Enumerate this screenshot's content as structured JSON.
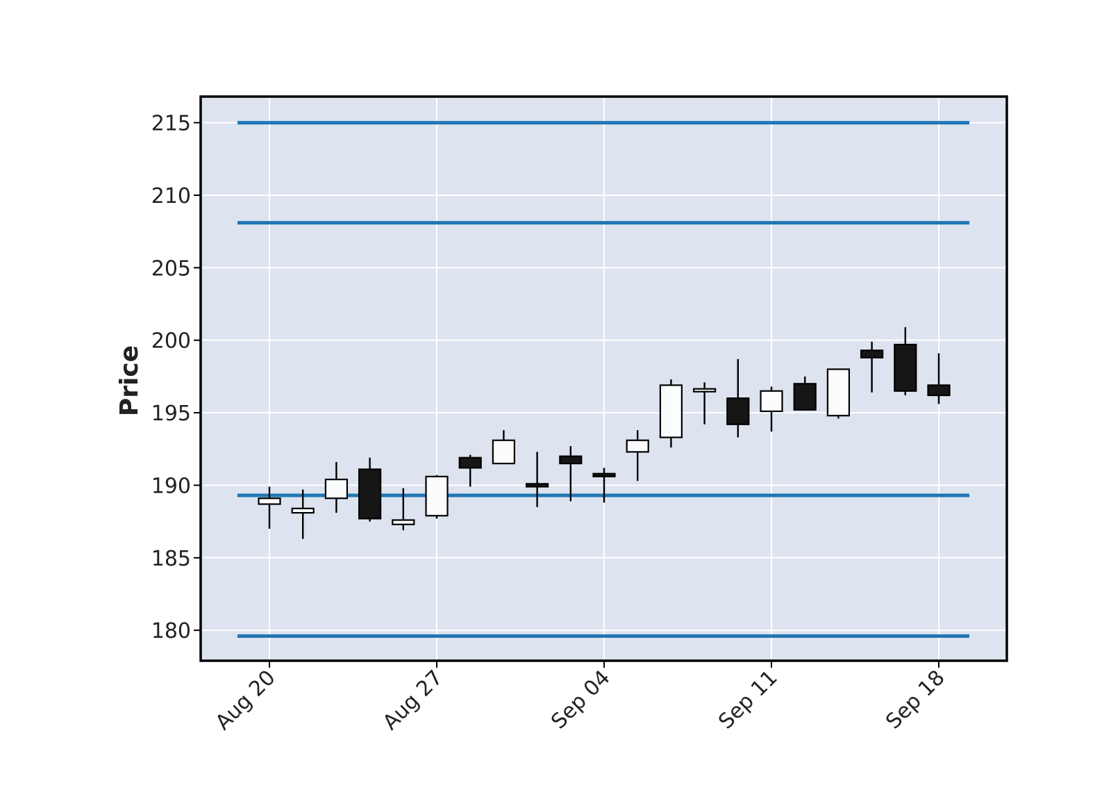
{
  "chart_data": {
    "type": "candlestick",
    "title": "",
    "xlabel": "",
    "ylabel": "Price",
    "ylim": [
      177.9,
      216.8
    ],
    "grid": true,
    "y_ticks": [
      180,
      185,
      190,
      195,
      200,
      205,
      210,
      215
    ],
    "x_ticks": [
      {
        "date": "2023-08-20",
        "label": "Aug 20"
      },
      {
        "date": "2023-08-27",
        "label": "Aug 27"
      },
      {
        "date": "2023-09-04",
        "label": "Sep 04"
      },
      {
        "date": "2023-09-11",
        "label": "Sep 11"
      },
      {
        "date": "2023-09-18",
        "label": "Sep 18"
      }
    ],
    "candles": [
      {
        "date": "2023-08-20",
        "open": 188.7,
        "high": 189.9,
        "low": 187.0,
        "close": 189.1
      },
      {
        "date": "2023-08-21",
        "open": 188.1,
        "high": 189.7,
        "low": 186.3,
        "close": 188.4
      },
      {
        "date": "2023-08-22",
        "open": 189.1,
        "high": 191.6,
        "low": 188.1,
        "close": 190.4
      },
      {
        "date": "2023-08-23",
        "open": 191.1,
        "high": 191.9,
        "low": 187.5,
        "close": 187.7
      },
      {
        "date": "2023-08-24",
        "open": 187.3,
        "high": 189.8,
        "low": 186.9,
        "close": 187.6
      },
      {
        "date": "2023-08-27",
        "open": 187.9,
        "high": 190.7,
        "low": 187.7,
        "close": 190.6
      },
      {
        "date": "2023-08-28",
        "open": 191.9,
        "high": 192.1,
        "low": 189.9,
        "close": 191.2
      },
      {
        "date": "2023-08-29",
        "open": 191.5,
        "high": 193.8,
        "low": 191.5,
        "close": 193.1
      },
      {
        "date": "2023-08-30",
        "open": 190.1,
        "high": 192.3,
        "low": 188.5,
        "close": 189.9
      },
      {
        "date": "2023-08-31",
        "open": 192.0,
        "high": 192.7,
        "low": 188.9,
        "close": 191.5
      },
      {
        "date": "2023-09-04",
        "open": 190.8,
        "high": 191.2,
        "low": 188.8,
        "close": 190.6
      },
      {
        "date": "2023-09-05",
        "open": 192.3,
        "high": 193.8,
        "low": 190.3,
        "close": 193.1
      },
      {
        "date": "2023-09-06",
        "open": 193.3,
        "high": 197.3,
        "low": 192.6,
        "close": 196.9
      },
      {
        "date": "2023-09-07",
        "open": 196.5,
        "high": 197.1,
        "low": 194.2,
        "close": 196.6
      },
      {
        "date": "2023-09-08",
        "open": 196.0,
        "high": 198.7,
        "low": 193.3,
        "close": 194.2
      },
      {
        "date": "2023-09-11",
        "open": 195.1,
        "high": 196.8,
        "low": 193.7,
        "close": 196.5
      },
      {
        "date": "2023-09-12",
        "open": 197.0,
        "high": 197.5,
        "low": 195.2,
        "close": 195.2
      },
      {
        "date": "2023-09-13",
        "open": 194.8,
        "high": 198.0,
        "low": 194.6,
        "close": 198.0
      },
      {
        "date": "2023-09-14",
        "open": 199.3,
        "high": 199.9,
        "low": 196.4,
        "close": 198.8
      },
      {
        "date": "2023-09-15",
        "open": 199.7,
        "high": 200.9,
        "low": 196.2,
        "close": 196.5
      },
      {
        "date": "2023-09-18",
        "open": 196.9,
        "high": 199.1,
        "low": 195.6,
        "close": 196.2
      }
    ],
    "hlines": [
      215.0,
      208.1,
      189.3,
      179.6
    ],
    "colors": {
      "up_body": "#fbfcfd",
      "down_body": "#161616",
      "edge": "#000000",
      "hline": "#1f77b4",
      "plot_background": "#dde3ef",
      "grid": "#ffffff"
    }
  }
}
